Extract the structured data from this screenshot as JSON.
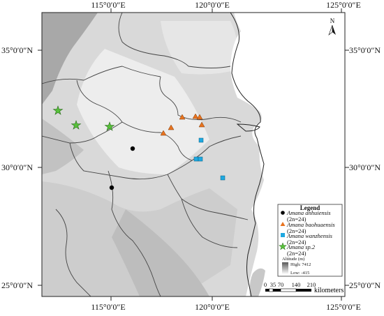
{
  "coordinates": {
    "top_longitudes": [
      "115°0′0″E",
      "120°0′0″E",
      "125°0′0″E"
    ],
    "bottom_longitudes": [
      "115°0′0″E",
      "120°0′0″E",
      "125°0′0″E"
    ],
    "left_latitudes": [
      "35°0′0″N",
      "30°0′0″N",
      "25°0′0″N"
    ],
    "right_latitudes": [
      "35°0′0″N",
      "30°0′0″N",
      "25°0′0″N"
    ]
  },
  "north_arrow": {
    "label": "N"
  },
  "legend": {
    "title": "Legend",
    "species": [
      {
        "name": "Amana anhuiensis",
        "chromosome": "(2n=24)",
        "symbol": "circle",
        "color": "#000000"
      },
      {
        "name": "Amana baohuaensis",
        "chromosome": "(2n=24)",
        "symbol": "triangle",
        "color": "#e8731f"
      },
      {
        "name": "Amana wanzhensis",
        "chromosome": "(2n=24)",
        "symbol": "square",
        "color": "#1fa8e0"
      },
      {
        "name": "Amana sp.2",
        "chromosome": "(2n=24)",
        "symbol": "star",
        "color": "#57c13a"
      }
    ],
    "altitude": {
      "title": "Altitude (m)",
      "high": "High: 7412",
      "low": "Low: -415"
    }
  },
  "scale_bar": {
    "ticks": [
      "0",
      "35",
      "70",
      "140",
      "210"
    ],
    "unit": "kilometers"
  },
  "colors": {
    "ramp_high": "#9a9a9a",
    "ramp_low": "#ffffff",
    "boundary": "#444444"
  }
}
